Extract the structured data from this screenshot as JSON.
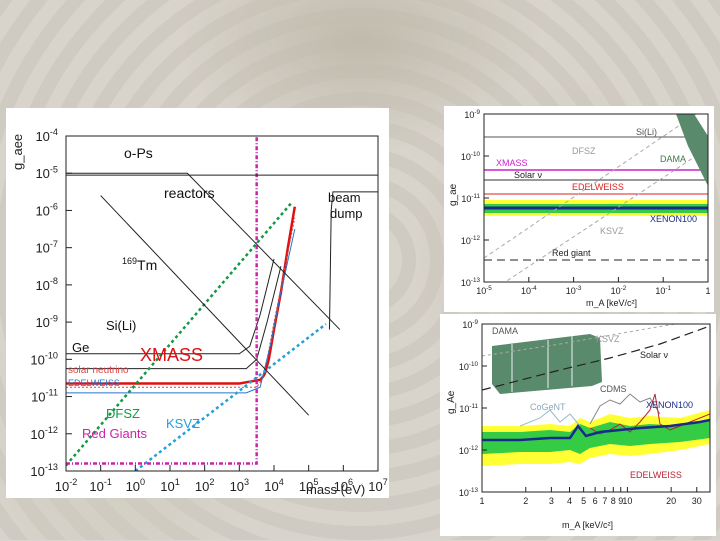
{
  "chart_data": [
    {
      "type": "line",
      "ylabel": "g_aee",
      "xlabel": "mass (eV)",
      "xlim": [
        -2,
        7
      ],
      "ylim": [
        -13,
        -4
      ],
      "log_x": true,
      "log_y": true,
      "x_tick_exponents": [
        "-2",
        "-1",
        "0",
        "1",
        "2",
        "3",
        "4",
        "5",
        "6",
        "7"
      ],
      "y_tick_exponents": [
        "-4",
        "-5",
        "-6",
        "-7",
        "-8",
        "-9",
        "-10",
        "-11",
        "-12",
        "-13"
      ],
      "tick_base": "10",
      "annotations": [
        "o-Ps",
        "reactors",
        "beam dump",
        "169Tm",
        "Si(Li)",
        "Ge",
        "XMASS",
        "solar neutrino",
        "EDELWEISS",
        "DFSZ",
        "KSVZ",
        "Red Giants"
      ],
      "series": [
        {
          "name": "XMASS",
          "color": "#dd1111",
          "x": [
            3.7,
            3.75,
            3.85,
            4.0,
            4.2,
            4.4,
            4.6
          ],
          "y": [
            -10.45,
            -10.35,
            -10.0,
            -9.2,
            -8.2,
            -7.0,
            -5.9
          ]
        },
        {
          "name": "XMASS-floor",
          "color": "#dd1111",
          "x": [
            -2,
            3.0,
            3.6,
            3.7
          ],
          "y": [
            -10.65,
            -10.65,
            -10.55,
            -10.45
          ]
        },
        {
          "name": "solar neutrino",
          "color": "#dd4444",
          "x": [
            -2,
            3.5,
            3.65,
            3.8,
            4.0,
            4.3,
            4.6
          ],
          "y": [
            -10.75,
            -10.75,
            -10.55,
            -10.0,
            -9.0,
            -7.6,
            -6.2
          ]
        },
        {
          "name": "EDELWEISS",
          "color": "#2277cc",
          "x": [
            -2,
            3.2,
            3.6,
            3.9,
            4.2,
            4.6
          ],
          "y": [
            -10.9,
            -10.9,
            -10.75,
            -9.6,
            -8.2,
            -6.5
          ]
        },
        {
          "name": "Ge",
          "color": "#222222",
          "x": [
            -2,
            3.2,
            3.5,
            3.8,
            4.2
          ],
          "y": [
            -10.25,
            -10.25,
            -10.0,
            -9.0,
            -7.5
          ]
        },
        {
          "name": "Si(Li)",
          "color": "#222222",
          "x": [
            -2,
            3.0,
            3.3,
            3.6,
            4.0
          ],
          "y": [
            -9.85,
            -9.85,
            -9.65,
            -8.8,
            -7.3
          ]
        },
        {
          "name": "DFSZ",
          "color": "#119944",
          "x": [
            -2,
            4.5
          ],
          "y": [
            -12.85,
            -5.8
          ]
        },
        {
          "name": "KSVZ",
          "color": "#22a0d8",
          "x": [
            0,
            5.5
          ],
          "y": [
            -13,
            -9.05
          ]
        },
        {
          "name": "Red Giants",
          "color": "#cc22aa",
          "x": [
            -2,
            3.5,
            3.5,
            3.5
          ],
          "y": [
            -12.8,
            -12.8,
            -12.8,
            -4
          ]
        },
        {
          "name": "o-Ps",
          "color": "#222222",
          "x": [
            -2,
            7
          ],
          "y": [
            -5.05,
            -5.05
          ]
        },
        {
          "name": "reactors",
          "color": "#222222",
          "x": [
            -2,
            1.5,
            5.9
          ],
          "y": [
            -5.0,
            -5.0,
            -9.2
          ]
        },
        {
          "name": "beam dump",
          "color": "#222222",
          "x": [
            5.6,
            5.65,
            5.7,
            5.9,
            6.1,
            7
          ],
          "y": [
            -9.2,
            -6.0,
            -5.5,
            -5.5,
            -5.5,
            -5.5
          ]
        },
        {
          "name": "169Tm",
          "color": "#222222",
          "x": [
            -1,
            5.0
          ],
          "y": [
            -5.6,
            -11.5
          ]
        }
      ]
    },
    {
      "type": "area",
      "ylabel": "g_ae",
      "xlabel": "m_A [keV/c²]",
      "x_ticks": [
        "10",
        "10",
        "10",
        "10",
        "10",
        "1"
      ],
      "x_tick_exponents": [
        "-5",
        "-4",
        "-3",
        "-2",
        "-1",
        ""
      ],
      "y_tick_exponents": [
        "-9",
        "-10",
        "-11",
        "-12",
        "-13"
      ],
      "tick_base": "10",
      "annotations": [
        "Si(Li)",
        "DFSZ",
        "DAMA",
        "XMASS",
        "Solar ν",
        "EDELWEISS",
        "XENON100",
        "KSVZ",
        "Red giant"
      ]
    },
    {
      "type": "area",
      "ylabel": "g_Ae",
      "xlabel": "m_A [keV/c²]",
      "x_ticks": [
        "1",
        "2",
        "3",
        "4",
        "5",
        "6",
        "7",
        "8",
        "9",
        "10",
        "20",
        "30"
      ],
      "y_tick_exponents": [
        "-9",
        "-10",
        "-11",
        "-12",
        "-13"
      ],
      "tick_base": "10",
      "annotations": [
        "DAMA",
        "KSVZ",
        "Solar ν",
        "CDMS",
        "CoGeNT",
        "XENON100",
        "EDELWEISS"
      ]
    }
  ]
}
